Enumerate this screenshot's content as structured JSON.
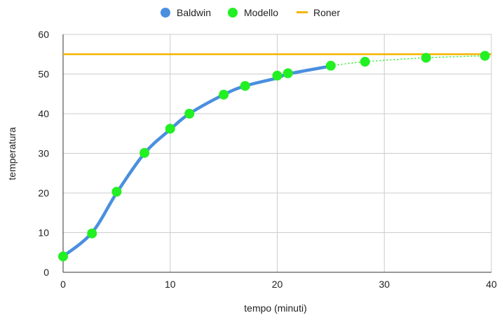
{
  "chart_data": {
    "type": "line",
    "title": "",
    "xlabel": "tempo (minuti)",
    "ylabel": "temperatura",
    "xlim": [
      0,
      40
    ],
    "ylim": [
      0,
      60
    ],
    "xticks": [
      0,
      10,
      20,
      30,
      40
    ],
    "yticks": [
      0,
      10,
      20,
      30,
      40,
      50,
      60
    ],
    "grid": true,
    "legend_position": "top",
    "series": [
      {
        "name": "Baldwin",
        "kind": "line",
        "color": "#4a8fdf",
        "x": [
          0,
          2.7,
          5,
          7.6,
          10,
          11.8,
          15,
          17,
          20,
          21,
          25
        ],
        "y": [
          4,
          10,
          20,
          30,
          36,
          40,
          44.8,
          47,
          49,
          50,
          52
        ]
      },
      {
        "name": "Modello",
        "kind": "scatter",
        "color": "#22f022",
        "x": [
          0,
          2.7,
          5,
          7.6,
          10,
          11.8,
          15,
          17,
          20,
          21,
          25,
          28.2,
          33.9,
          39.4
        ],
        "y": [
          4,
          9.8,
          20.3,
          30.1,
          36.2,
          40,
          44.8,
          47,
          49.6,
          50.2,
          52.1,
          53.1,
          54.1,
          54.6
        ]
      },
      {
        "name": "Roner",
        "kind": "line",
        "color": "#f4b400",
        "x": [
          0,
          40
        ],
        "y": [
          55,
          55
        ]
      }
    ]
  }
}
